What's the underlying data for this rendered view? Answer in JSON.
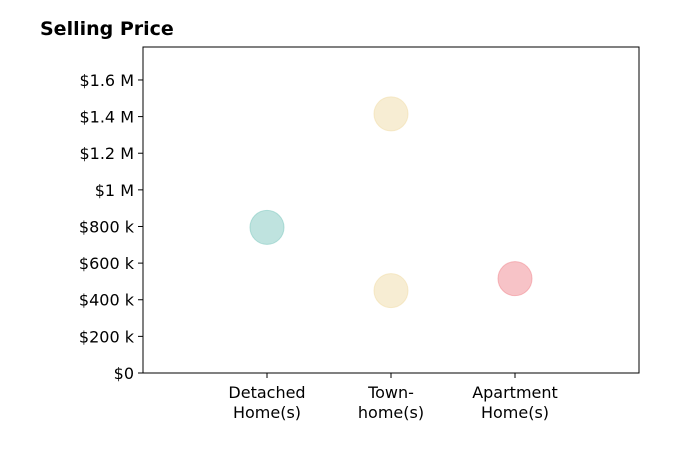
{
  "chart_data": {
    "type": "scatter",
    "title": "Selling Price",
    "xlabel": "",
    "ylabel": "",
    "categories": [
      [
        "Detached",
        "Home(s)"
      ],
      [
        "Town-",
        "home(s)"
      ],
      [
        "Apartment",
        "Home(s)"
      ]
    ],
    "ylim": [
      0,
      1780000
    ],
    "yticks": [
      {
        "value": 0,
        "label": "$0"
      },
      {
        "value": 200000,
        "label": "$200 k"
      },
      {
        "value": 400000,
        "label": "$400 k"
      },
      {
        "value": 600000,
        "label": "$600 k"
      },
      {
        "value": 800000,
        "label": "$800 k"
      },
      {
        "value": 1000000,
        "label": "$1 M"
      },
      {
        "value": 1200000,
        "label": "$1.2 M"
      },
      {
        "value": 1400000,
        "label": "$1.4 M"
      },
      {
        "value": 1600000,
        "label": "$1.6 M"
      }
    ],
    "points": [
      {
        "category": 0,
        "value": 795000,
        "color": "#7fc8c0"
      },
      {
        "category": 1,
        "value": 1415000,
        "color": "#f0dca8"
      },
      {
        "category": 1,
        "value": 450000,
        "color": "#f0dca8"
      },
      {
        "category": 2,
        "value": 515000,
        "color": "#f08890"
      }
    ],
    "grid": false,
    "legend": "none"
  }
}
